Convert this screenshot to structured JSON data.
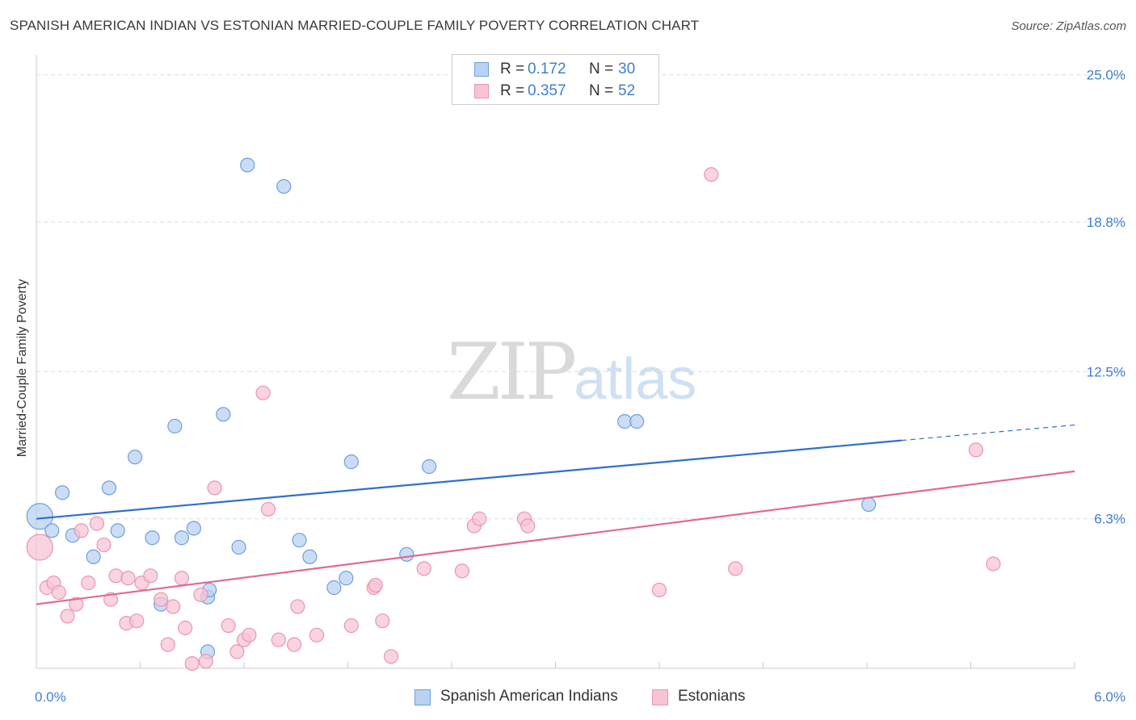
{
  "header": {
    "title": "SPANISH AMERICAN INDIAN VS ESTONIAN MARRIED-COUPLE FAMILY POVERTY CORRELATION CHART",
    "source": "Source: ZipAtlas.com"
  },
  "watermark": {
    "zip": "ZIP",
    "atlas": "atlas"
  },
  "legend": {
    "rows": [
      {
        "r_label": "R =",
        "r_value": "0.172",
        "n_label": "N =",
        "n_value": "30"
      },
      {
        "r_label": "R =",
        "r_value": "0.357",
        "n_label": "N =",
        "n_value": "52"
      }
    ]
  },
  "colors": {
    "blue_fill": "#b9d2f2",
    "blue_stroke": "#6f9fdc",
    "blue_line": "#2f6fce",
    "pink_fill": "#f7c4d4",
    "pink_stroke": "#e896b2",
    "pink_line": "#e06a94",
    "tick_text": "#3f7fd0",
    "grid": "#dcdcdc"
  },
  "chart_data": {
    "type": "scatter",
    "title": "SPANISH AMERICAN INDIAN VS ESTONIAN MARRIED-COUPLE FAMILY POVERTY CORRELATION CHART",
    "xlabel": "",
    "ylabel": "Married-Couple Family Poverty",
    "xlim": [
      0,
      6
    ],
    "ylim": [
      0,
      25.5
    ],
    "x_tick_labels": [
      "0.0%",
      "6.0%"
    ],
    "y_ticks": [
      6.3,
      12.5,
      18.8,
      25.0
    ],
    "y_tick_labels": [
      "6.3%",
      "12.5%",
      "18.8%",
      "25.0%"
    ],
    "grid": true,
    "series": [
      {
        "name": "Spanish American Indians",
        "r": 0.172,
        "n": 30,
        "trend": {
          "x0": 0,
          "y0": 6.3,
          "x1": 5.0,
          "y1": 9.6,
          "dash_to_x": 6.0,
          "dash_to_y": 10.25
        },
        "points": [
          {
            "x": 0.02,
            "y": 6.4,
            "big": true
          },
          {
            "x": 0.09,
            "y": 5.8
          },
          {
            "x": 0.15,
            "y": 7.4
          },
          {
            "x": 0.21,
            "y": 5.6
          },
          {
            "x": 0.33,
            "y": 4.7
          },
          {
            "x": 0.42,
            "y": 7.6
          },
          {
            "x": 0.47,
            "y": 5.8
          },
          {
            "x": 0.57,
            "y": 8.9
          },
          {
            "x": 0.67,
            "y": 5.5
          },
          {
            "x": 0.72,
            "y": 2.7
          },
          {
            "x": 0.8,
            "y": 10.2
          },
          {
            "x": 0.84,
            "y": 5.5
          },
          {
            "x": 0.91,
            "y": 5.9
          },
          {
            "x": 0.99,
            "y": 3.0
          },
          {
            "x": 1.0,
            "y": 3.3
          },
          {
            "x": 1.08,
            "y": 10.7
          },
          {
            "x": 0.99,
            "y": 0.7
          },
          {
            "x": 1.17,
            "y": 5.1
          },
          {
            "x": 1.22,
            "y": 21.2
          },
          {
            "x": 1.43,
            "y": 20.3
          },
          {
            "x": 1.52,
            "y": 5.4
          },
          {
            "x": 1.58,
            "y": 4.7
          },
          {
            "x": 1.72,
            "y": 3.4
          },
          {
            "x": 1.79,
            "y": 3.8
          },
          {
            "x": 1.82,
            "y": 8.7
          },
          {
            "x": 2.14,
            "y": 4.8
          },
          {
            "x": 2.27,
            "y": 8.5
          },
          {
            "x": 3.4,
            "y": 10.4
          },
          {
            "x": 3.47,
            "y": 10.4
          },
          {
            "x": 4.81,
            "y": 6.9
          }
        ]
      },
      {
        "name": "Estonians",
        "r": 0.357,
        "n": 52,
        "trend": {
          "x0": 0,
          "y0": 2.7,
          "x1": 6.0,
          "y1": 8.3
        },
        "points": [
          {
            "x": 0.02,
            "y": 5.1,
            "big": true
          },
          {
            "x": 0.06,
            "y": 3.4
          },
          {
            "x": 0.1,
            "y": 3.6
          },
          {
            "x": 0.13,
            "y": 3.2
          },
          {
            "x": 0.18,
            "y": 2.2
          },
          {
            "x": 0.23,
            "y": 2.7
          },
          {
            "x": 0.26,
            "y": 5.8
          },
          {
            "x": 0.3,
            "y": 3.6
          },
          {
            "x": 0.35,
            "y": 6.1
          },
          {
            "x": 0.39,
            "y": 5.2
          },
          {
            "x": 0.43,
            "y": 2.9
          },
          {
            "x": 0.46,
            "y": 3.9
          },
          {
            "x": 0.52,
            "y": 1.9
          },
          {
            "x": 0.58,
            "y": 2.0
          },
          {
            "x": 0.61,
            "y": 3.6
          },
          {
            "x": 0.53,
            "y": 3.8
          },
          {
            "x": 0.66,
            "y": 3.9
          },
          {
            "x": 0.72,
            "y": 2.9
          },
          {
            "x": 0.76,
            "y": 1.0
          },
          {
            "x": 0.79,
            "y": 2.6
          },
          {
            "x": 0.84,
            "y": 3.8
          },
          {
            "x": 0.86,
            "y": 1.7
          },
          {
            "x": 0.9,
            "y": 0.2
          },
          {
            "x": 0.95,
            "y": 3.1
          },
          {
            "x": 0.98,
            "y": 0.3
          },
          {
            "x": 1.03,
            "y": 7.6
          },
          {
            "x": 1.11,
            "y": 1.8
          },
          {
            "x": 1.16,
            "y": 0.7
          },
          {
            "x": 1.2,
            "y": 1.2
          },
          {
            "x": 1.31,
            "y": 11.6
          },
          {
            "x": 1.34,
            "y": 6.7
          },
          {
            "x": 1.4,
            "y": 1.2
          },
          {
            "x": 1.49,
            "y": 1.0
          },
          {
            "x": 1.51,
            "y": 2.6
          },
          {
            "x": 1.62,
            "y": 1.4
          },
          {
            "x": 1.82,
            "y": 1.8
          },
          {
            "x": 1.95,
            "y": 3.4
          },
          {
            "x": 1.96,
            "y": 3.5
          },
          {
            "x": 2.0,
            "y": 2.0
          },
          {
            "x": 2.05,
            "y": 0.5
          },
          {
            "x": 2.24,
            "y": 4.2
          },
          {
            "x": 2.46,
            "y": 4.1
          },
          {
            "x": 2.53,
            "y": 6.0
          },
          {
            "x": 2.56,
            "y": 6.3
          },
          {
            "x": 2.82,
            "y": 6.3
          },
          {
            "x": 2.84,
            "y": 6.0
          },
          {
            "x": 3.6,
            "y": 3.3
          },
          {
            "x": 3.9,
            "y": 20.8
          },
          {
            "x": 4.04,
            "y": 4.2
          },
          {
            "x": 5.43,
            "y": 9.2
          },
          {
            "x": 5.53,
            "y": 4.4
          },
          {
            "x": 1.23,
            "y": 1.4
          }
        ]
      }
    ]
  }
}
